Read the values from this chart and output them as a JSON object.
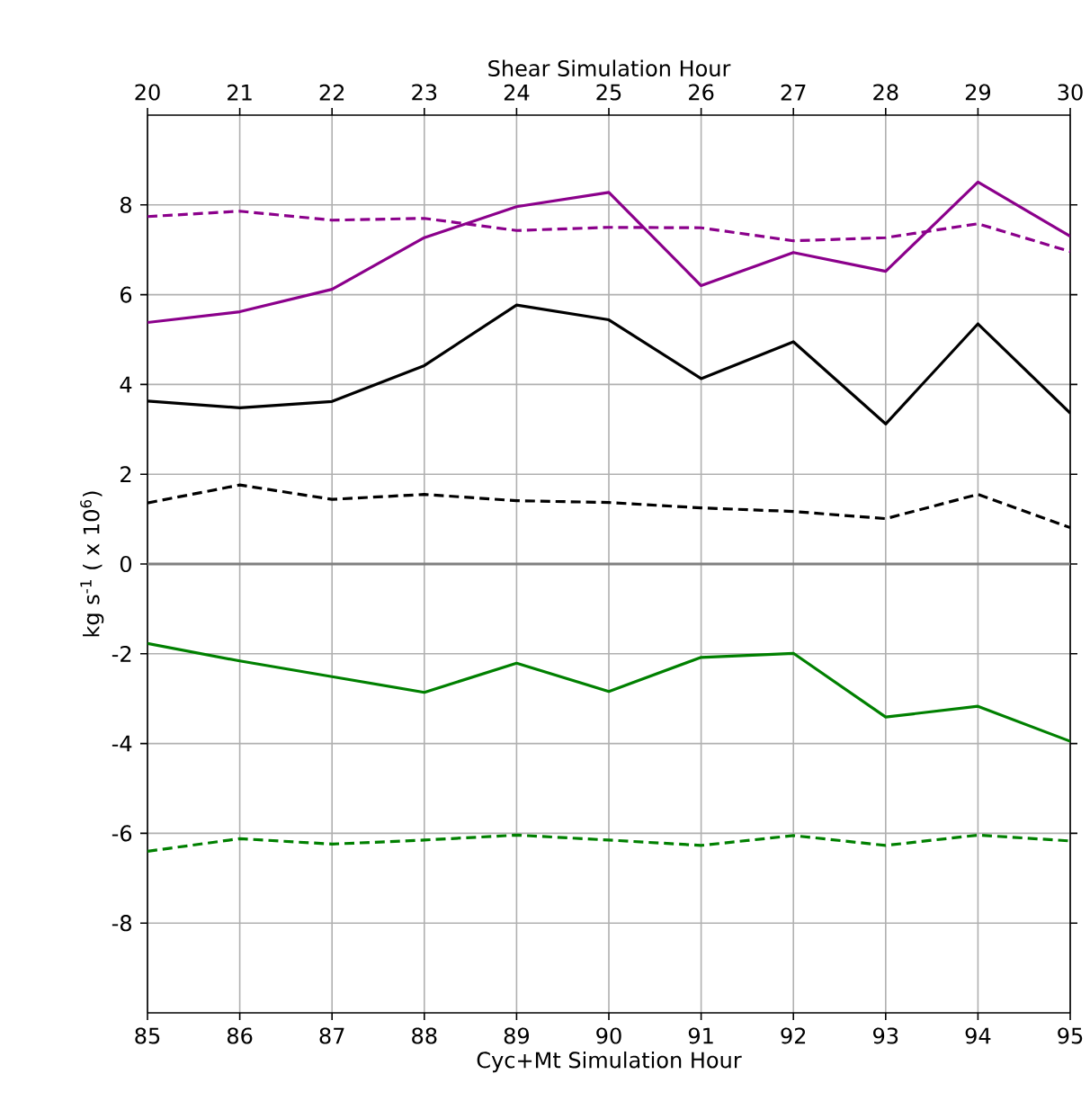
{
  "chart_data": {
    "type": "line",
    "xlabel": "Cyc+Mt Simulation Hour",
    "x2label": "Shear Simulation Hour",
    "ylabel": "kg s$^{-1}$ ( x 10$^{6}$)",
    "x": [
      85,
      86,
      87,
      88,
      89,
      90,
      91,
      92,
      93,
      94,
      95
    ],
    "xlim": [
      85,
      95
    ],
    "xticks": [
      85,
      86,
      87,
      88,
      89,
      90,
      91,
      92,
      93,
      94,
      95
    ],
    "x2lim": [
      20,
      30
    ],
    "x2ticks": [
      20,
      21,
      22,
      23,
      24,
      25,
      26,
      27,
      28,
      29,
      30
    ],
    "ylim": [
      -10,
      10
    ],
    "yticks": [
      -8,
      -6,
      -4,
      -2,
      0,
      2,
      4,
      6,
      8
    ],
    "grid": true,
    "ref_lines": [
      {
        "axis": "y",
        "value": 0,
        "color": "#808080"
      }
    ],
    "series": [
      {
        "color": "#8b008b",
        "line_style": "solid",
        "values": [
          5.38,
          5.62,
          6.12,
          7.27,
          7.96,
          8.28,
          6.2,
          6.94,
          6.52,
          8.51,
          7.3
        ]
      },
      {
        "color": "#8b008b",
        "line_style": "dashed",
        "values": [
          7.74,
          7.86,
          7.66,
          7.7,
          7.43,
          7.5,
          7.49,
          7.2,
          7.27,
          7.58,
          6.96
        ]
      },
      {
        "color": "#000000",
        "line_style": "solid",
        "values": [
          3.63,
          3.48,
          3.62,
          4.42,
          5.77,
          5.44,
          4.13,
          4.95,
          3.12,
          5.35,
          3.36
        ]
      },
      {
        "color": "#000000",
        "line_style": "dashed",
        "values": [
          1.36,
          1.76,
          1.44,
          1.55,
          1.41,
          1.37,
          1.25,
          1.17,
          1.01,
          1.55,
          0.81
        ]
      },
      {
        "color": "#008000",
        "line_style": "solid",
        "values": [
          -1.77,
          -2.16,
          -2.51,
          -2.86,
          -2.21,
          -2.84,
          -2.08,
          -1.99,
          -3.41,
          -3.17,
          -3.95
        ]
      },
      {
        "color": "#008000",
        "line_style": "dashed",
        "values": [
          -6.4,
          -6.12,
          -6.24,
          -6.15,
          -6.04,
          -6.15,
          -6.27,
          -6.05,
          -6.27,
          -6.04,
          -6.17
        ]
      }
    ]
  }
}
